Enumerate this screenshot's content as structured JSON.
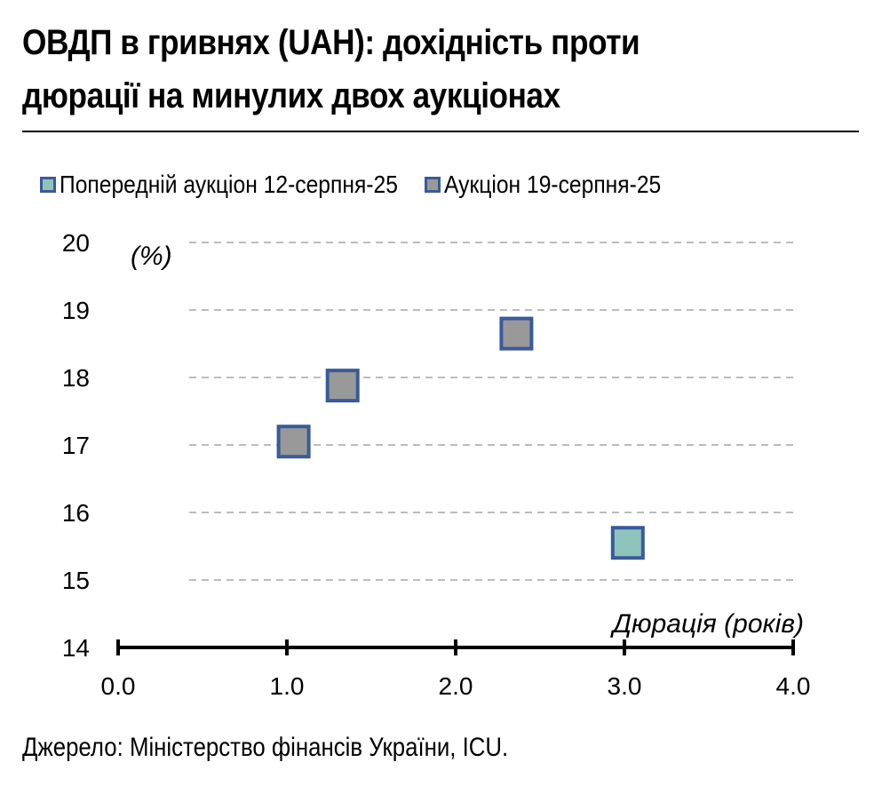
{
  "header": {
    "title_line1": "ОВДП в гривнях (UAH): дохідність проти",
    "title_line2": "дюрації на минулих двох аукціонах"
  },
  "footer": {
    "source": "Джерело: Міністерство фінансів України, ICU."
  },
  "colors": {
    "prev_fill": "#8fc4bd",
    "curr_fill": "#999999",
    "marker_border": "#3a5a9a",
    "grid": "#bdbdbd"
  },
  "chart_data": {
    "type": "scatter",
    "title": "ОВДП в гривнях (UAH): дохідність проти дюрації на минулих двох аукціонах",
    "xlabel": "Дюрація (років)",
    "ylabel": "(%)",
    "xlim": [
      0,
      4
    ],
    "ylim": [
      14,
      20
    ],
    "x_ticks": [
      "0.0",
      "1.0",
      "2.0",
      "3.0",
      "4.0"
    ],
    "y_ticks": [
      "14",
      "15",
      "16",
      "17",
      "18",
      "19",
      "20"
    ],
    "grid": true,
    "legend_position": "top",
    "series": [
      {
        "name": "Попередній аукціон 12-серпня-25",
        "points": [
          {
            "x": 3.02,
            "y": 15.55
          }
        ]
      },
      {
        "name": "Аукціон 19-серпня-25",
        "points": [
          {
            "x": 1.04,
            "y": 17.05
          },
          {
            "x": 1.33,
            "y": 17.88
          },
          {
            "x": 2.36,
            "y": 18.65
          }
        ]
      }
    ]
  }
}
